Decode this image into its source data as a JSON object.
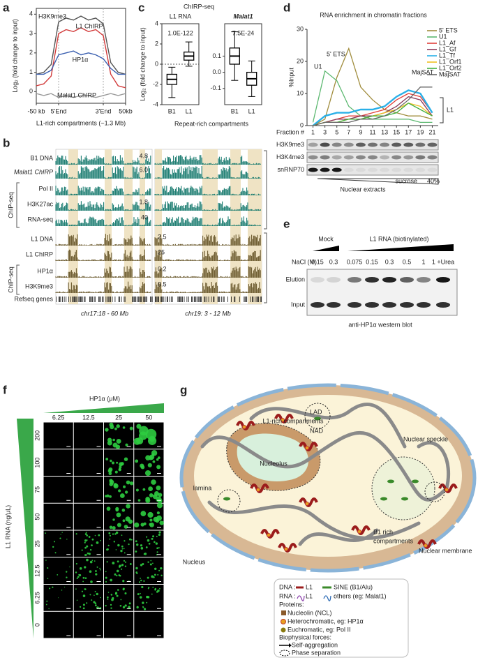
{
  "panel_labels": [
    "a",
    "b",
    "c",
    "d",
    "e",
    "f",
    "g"
  ],
  "panel_a": {
    "type": "line",
    "ylabel": "Log₂ (fold change to input)",
    "xlabel": "L1-rich compartments (~1.3 Mb)",
    "x": [
      0,
      1,
      2,
      3,
      4,
      5,
      6,
      7,
      8,
      9,
      10,
      11,
      12
    ],
    "xlim": [
      0,
      12
    ],
    "xticks": [
      {
        "value": 0,
        "label": "-50 kb"
      },
      {
        "value": 3,
        "label": "5'End"
      },
      {
        "value": 9,
        "label": "3'End"
      },
      {
        "value": 12,
        "label": "50kb"
      }
    ],
    "ylim": [
      -0.6,
      4.3
    ],
    "yticks": [
      0,
      1,
      2,
      3,
      4
    ],
    "series": [
      {
        "name": "H3K9me3",
        "color": "#555555",
        "values": [
          0.9,
          1.0,
          1.4,
          3.6,
          3.8,
          3.7,
          3.9,
          3.7,
          3.8,
          3.5,
          1.5,
          1.0,
          0.9
        ]
      },
      {
        "name": "L1 ChIRP",
        "color": "#d23a3a",
        "values": [
          0.3,
          0.4,
          0.8,
          3.0,
          3.2,
          3.1,
          3.3,
          3.1,
          3.2,
          2.9,
          0.9,
          0.3,
          0.2
        ]
      },
      {
        "name": "HP1α",
        "color": "#3a5fb0",
        "values": [
          0.9,
          0.9,
          1.1,
          1.9,
          2.0,
          2.1,
          1.9,
          2.0,
          1.9,
          1.7,
          1.2,
          0.9,
          0.9
        ]
      },
      {
        "name": "Malat1 ChIRP",
        "color": "#9a9a9a",
        "values": [
          -0.1,
          -0.2,
          -0.1,
          -0.3,
          -0.2,
          -0.3,
          -0.2,
          -0.2,
          -0.3,
          -0.2,
          -0.1,
          -0.2,
          -0.1
        ]
      }
    ]
  },
  "panel_b": {
    "track_labels": [
      "B1 DNA",
      "Malat1 ChIRP",
      "Pol II",
      "H3K27ac",
      "RNA-seq",
      "L1 DNA",
      "L1 ChIRP",
      "HP1α",
      "H3K9me3",
      "Refseq genes"
    ],
    "group_labels": [
      "ChIP-seq",
      "ChIP-seq"
    ],
    "scales": [
      "4.8",
      "6.0",
      "1.8",
      "40",
      "2.5",
      "25",
      "0.2",
      "0.5"
    ],
    "regions": [
      "chr17:18 - 60 Mb",
      "chr19: 3 - 12 Mb"
    ]
  },
  "panel_c": {
    "type": "box",
    "title": "ChIRP-seq",
    "ylabel": "Log₂ (fold change to input)",
    "xlabel": "Repeat-rich compartments",
    "panels": [
      {
        "title": "L1 RNA",
        "p_value": "1.0E-122",
        "ylim": [
          -4,
          4
        ],
        "yticks": [
          -4,
          -2,
          0,
          2,
          4
        ],
        "categories": [
          "B1",
          "L1"
        ],
        "boxes": [
          {
            "whisker_low": -3.3,
            "q1": -2.0,
            "median": -1.5,
            "q3": -1.0,
            "whisker_high": -0.3
          },
          {
            "whisker_low": -0.2,
            "q1": 0.4,
            "median": 0.8,
            "q3": 1.2,
            "whisker_high": 2.2
          }
        ]
      },
      {
        "title": "Malat1",
        "p_value": "7.5E-24",
        "ylim": [
          -0.2,
          0.3
        ],
        "yticks": [
          -0.1,
          {
            "value": 0,
            "label": "0.0"
          },
          0.1
        ],
        "categories": [
          "B1",
          "L1"
        ],
        "boxes": [
          {
            "whisker_low": -0.05,
            "q1": 0.05,
            "median": 0.1,
            "q3": 0.15,
            "whisker_high": 0.25
          },
          {
            "whisker_low": -0.15,
            "q1": -0.08,
            "median": -0.04,
            "q3": 0,
            "whisker_high": 0.07
          }
        ]
      }
    ]
  },
  "panel_d": {
    "type": "line",
    "title": "RNA enrichment in chromatin fractions",
    "ylabel": "%Input",
    "fraction_label": "Fraction #",
    "x": [
      1,
      3,
      5,
      7,
      9,
      11,
      13,
      15,
      17,
      19,
      21
    ],
    "xlim": [
      0,
      22
    ],
    "xticks": [
      1,
      3,
      5,
      7,
      9,
      11,
      13,
      15,
      17,
      19,
      21
    ],
    "ylim": [
      0,
      30
    ],
    "yticks": [
      0,
      10,
      20,
      30
    ],
    "series": [
      {
        "name": "5' ETS",
        "color": "#a08c3c",
        "values": [
          0,
          2,
          15,
          24,
          12,
          8,
          5,
          4,
          3,
          3,
          2
        ]
      },
      {
        "name": "U1",
        "color": "#5cb870",
        "values": [
          1,
          17,
          14,
          6,
          3,
          2,
          2,
          2,
          2,
          1,
          1
        ]
      },
      {
        "name": "L1_Af",
        "color": "#e0403a",
        "values": [
          0,
          1,
          2,
          3,
          3,
          4,
          5,
          8,
          10,
          9,
          4
        ]
      },
      {
        "name": "L1_Gf",
        "color": "#8b3a5a",
        "values": [
          0,
          1,
          2,
          2,
          3,
          3,
          4,
          6,
          9,
          8,
          3
        ]
      },
      {
        "name": "L1_Tf",
        "color": "#2ab0e8",
        "values": [
          0,
          3,
          4,
          4,
          5,
          5,
          6,
          9,
          11,
          10,
          4
        ]
      },
      {
        "name": "L1_Orf1",
        "color": "#f0c020",
        "values": [
          0,
          1,
          1,
          2,
          2,
          3,
          4,
          5,
          7,
          6,
          3
        ]
      },
      {
        "name": "L1_Orf2",
        "color": "#40b040",
        "values": [
          0,
          1,
          1,
          2,
          2,
          3,
          3,
          4,
          7,
          5,
          3
        ]
      },
      {
        "name": "MajSAT",
        "color": "#666666",
        "values": [
          0,
          1,
          1,
          1,
          2,
          2,
          3,
          5,
          8,
          12,
          12
        ]
      }
    ],
    "annotations": [
      "U1",
      "5' ETS",
      "MajSAT",
      "L1"
    ],
    "blots": [
      "H3K9me3",
      "H3K4me3",
      "snRNP70"
    ],
    "bottom": [
      "Nuclear extracts",
      "sucrose",
      "40%"
    ]
  },
  "panel_e": {
    "headers": [
      "Mock",
      "L1 RNA (biotinylated)"
    ],
    "salt_label": "NaCl (M)",
    "lanes": [
      "0.15",
      "0.3",
      "0.075",
      "0.15",
      "0.3",
      "0.5",
      "1",
      "1 +Urea"
    ],
    "rows": [
      "Elution",
      "Input"
    ],
    "caption": "anti-HP1α western blot"
  },
  "panel_f": {
    "title": "HP1α (μM)",
    "columns": [
      "6.25",
      "12.5",
      "25",
      "50"
    ],
    "ylabel": "L1 RNA (ng/μL)",
    "rows": [
      "200",
      "100",
      "75",
      "50",
      "25",
      "12.5",
      "6.25",
      "0"
    ]
  },
  "panel_g": {
    "labels": [
      "LAD",
      "L1-rich compartments",
      "NAD",
      "Nucleolus",
      "Nuclear speckle",
      "lamina",
      "B1 rich",
      "compartments",
      "Nucleus",
      "Nuclear membrane"
    ],
    "legend": [
      "DNA :",
      "L1",
      "SINE (B1/Alu)",
      "RNA :",
      "L1",
      "others (eg: Malat1)",
      "Proteins:",
      "Nucleolin (NCL)",
      "Heterochromatic, eg: HP1α",
      "Euchromatic, eg: Pol II",
      "Biophysical forces:",
      "Self-aggregation",
      "Phase separation"
    ]
  }
}
